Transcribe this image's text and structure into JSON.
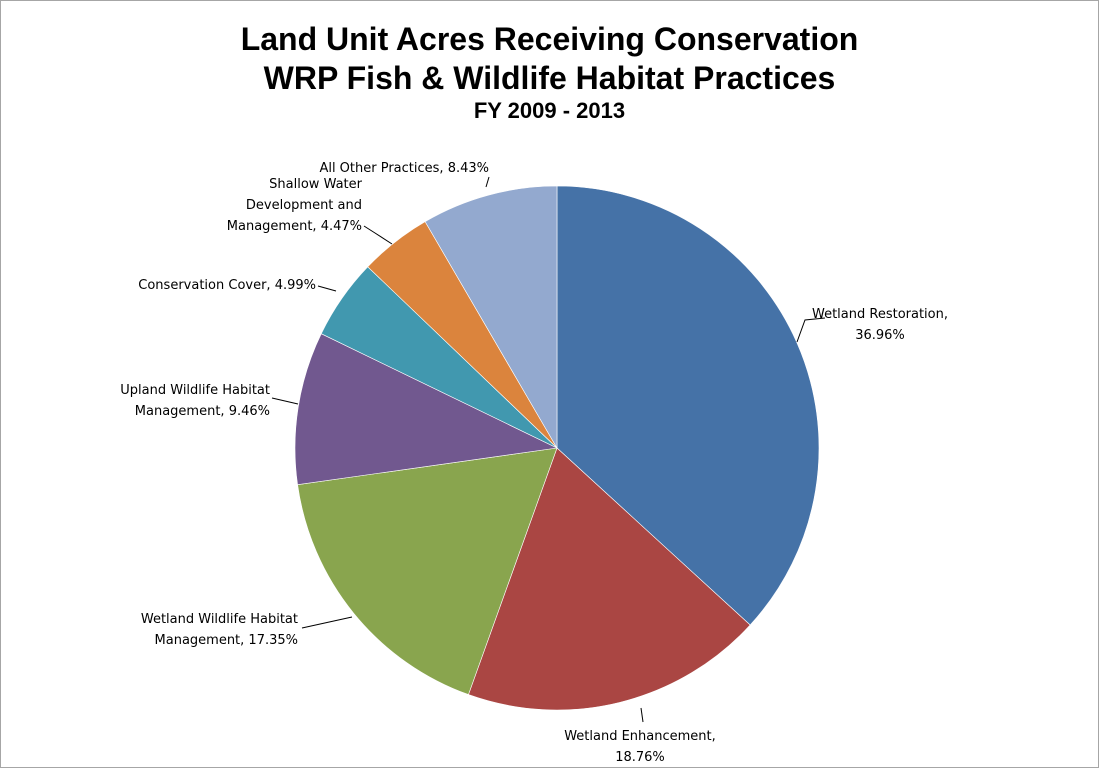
{
  "chart_data": {
    "type": "pie",
    "title": "Land Unit Acres Receiving Conservation",
    "subtitle": "WRP Fish & Wildlife Habitat Practices",
    "subtitle2": "FY 2009 - 2013",
    "slices": [
      {
        "label": "Wetland Restoration",
        "value": 36.96,
        "value_text": "36.96%",
        "color": "#4572a7"
      },
      {
        "label": "Wetland Enhancement",
        "value": 18.76,
        "value_text": "18.76%",
        "color": "#aa4643"
      },
      {
        "label": "Wetland Wildlife Habitat Management",
        "value": 17.35,
        "value_text": "17.35%",
        "color": "#89a54e"
      },
      {
        "label": "Upland Wildlife Habitat Management",
        "value": 9.46,
        "value_text": "9.46%",
        "color": "#71588f"
      },
      {
        "label": "Conservation Cover",
        "value": 4.99,
        "value_text": "4.99%",
        "color": "#4198af"
      },
      {
        "label": "Shallow Water Development and Management",
        "value": 4.47,
        "value_text": "4.47%",
        "color": "#db843d"
      },
      {
        "label": "All Other Practices",
        "value": 8.43,
        "value_text": "8.43%",
        "color": "#93a9cf"
      }
    ],
    "legend": "none",
    "data_labels": "outside-with-leader-lines"
  }
}
